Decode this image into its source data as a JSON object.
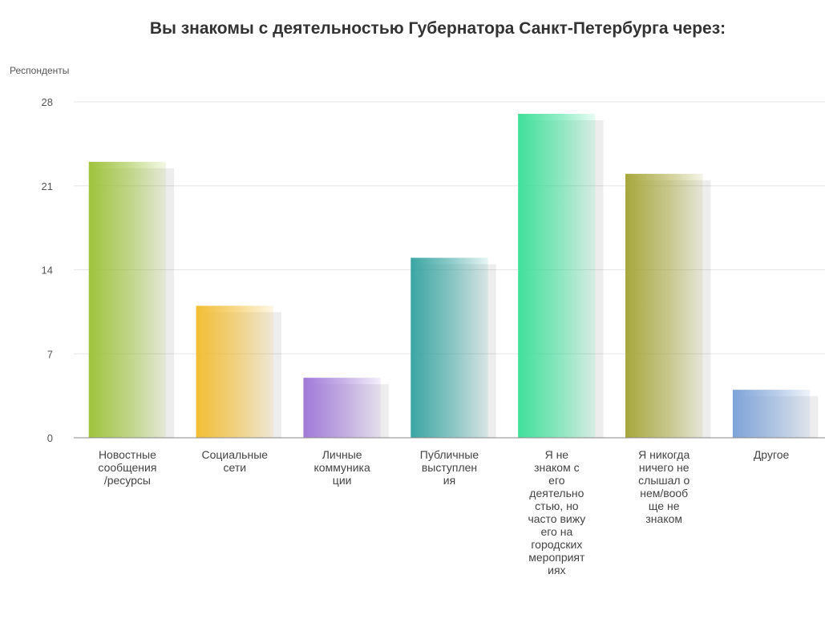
{
  "chart_data": {
    "type": "bar",
    "title": "Вы знакомы с деятельностью Губернатора Санкт-Петербурга через:",
    "ylabel": "Респонденты",
    "xlabel": "",
    "ylim": [
      0,
      28
    ],
    "yticks": [
      0,
      7,
      14,
      21,
      28
    ],
    "grid": true,
    "legend": "none",
    "categories": [
      "Новостные сообщения /ресурсы",
      "Социальные сети",
      "Личные коммуникации",
      "Публичные выступления",
      "Я не знаком с его деятельностью, но часто вижу его на городских мероприятиях",
      "Я никогда ничего не слышал о нем/вообще не знаком",
      "Другое"
    ],
    "category_lines": [
      [
        "Новостные",
        "сообщения",
        "/ресурсы"
      ],
      [
        "Социальные",
        "сети"
      ],
      [
        "Личные",
        "коммуника",
        "ции"
      ],
      [
        "Публичные",
        "выступлен",
        "ия"
      ],
      [
        "Я не",
        "знаком с",
        "его",
        "деятельно",
        "стью, но",
        "часто вижу",
        "его на",
        "городских",
        "мероприят",
        "иях"
      ],
      [
        "Я никогда",
        "ничего не",
        "слышал о",
        "нем/вооб",
        "ще не",
        "знаком"
      ],
      [
        "Другое"
      ]
    ],
    "values": [
      23,
      11,
      5,
      15,
      27,
      22,
      4
    ],
    "colors": [
      "#9ec33c",
      "#f2bd33",
      "#a07ad8",
      "#3aa5a2",
      "#3fe09a",
      "#a7a73c",
      "#7da3d8"
    ]
  }
}
